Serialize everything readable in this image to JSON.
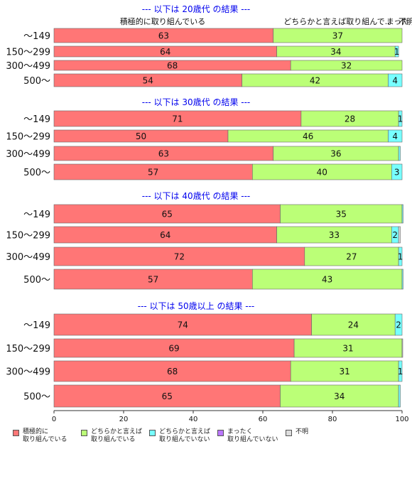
{
  "chart_data": {
    "type": "bar",
    "orientation": "horizontal",
    "stacked": true,
    "xlim": [
      0,
      100
    ],
    "xticks": [
      "0",
      "20",
      "40",
      "60",
      "80",
      "100"
    ],
    "header_labels": [
      "積極的に取り組んでいる",
      "どちらかと言えば取り組んで..",
      "まった",
      "不明"
    ],
    "series": [
      {
        "name": "積極的に\n取り組んでいる",
        "color": "#ff7676"
      },
      {
        "name": "どちらかと言えば\n取り組んでいる",
        "color": "#bbff77"
      },
      {
        "name": "どちらかと言えば\n取り組んでいない",
        "color": "#77ffff"
      },
      {
        "name": "まったく\n取り組んでいない",
        "color": "#bb77ff"
      },
      {
        "name": "不明",
        "color": "#dddddd"
      }
    ],
    "groups": [
      {
        "title": "--- 以下は 20歳代 の結果 ---",
        "categories": [
          "〜149",
          "150〜299",
          "300〜499",
          "500〜"
        ],
        "values": [
          [
            63,
            37,
            0,
            0,
            0
          ],
          [
            64,
            34,
            1,
            0,
            0
          ],
          [
            68,
            32,
            0,
            0,
            0
          ],
          [
            54,
            42,
            4,
            0,
            0
          ]
        ],
        "labels": [
          [
            "63",
            "37",
            "",
            "",
            ""
          ],
          [
            "64",
            "34",
            "1",
            "",
            ""
          ],
          [
            "68",
            "32",
            "",
            "",
            ""
          ],
          [
            "54",
            "42",
            "4",
            "",
            ""
          ]
        ]
      },
      {
        "title": "--- 以下は 30歳代 の結果 ---",
        "categories": [
          "〜149",
          "150〜299",
          "300〜499",
          "500〜"
        ],
        "values": [
          [
            71,
            28,
            1,
            0,
            0
          ],
          [
            50,
            46,
            4,
            0,
            0
          ],
          [
            63,
            36,
            0.5,
            0,
            0
          ],
          [
            57,
            40,
            3,
            0,
            0
          ]
        ],
        "labels": [
          [
            "71",
            "28",
            "1",
            "",
            ""
          ],
          [
            "50",
            "46",
            "4",
            "",
            ""
          ],
          [
            "63",
            "36",
            "",
            "",
            ""
          ],
          [
            "57",
            "40",
            "3",
            "",
            ""
          ]
        ]
      },
      {
        "title": "--- 以下は 40歳代 の結果 ---",
        "categories": [
          "〜149",
          "150〜299",
          "300〜499",
          "500〜"
        ],
        "values": [
          [
            65,
            35,
            0.3,
            0,
            0
          ],
          [
            64,
            33,
            2,
            0,
            0.5
          ],
          [
            72,
            27,
            1,
            0,
            0
          ],
          [
            57,
            43,
            0.3,
            0,
            0
          ]
        ],
        "labels": [
          [
            "65",
            "35",
            "",
            "",
            ""
          ],
          [
            "64",
            "33",
            "2",
            "",
            ""
          ],
          [
            "72",
            "27",
            "1",
            "",
            ""
          ],
          [
            "57",
            "43",
            "",
            "",
            ""
          ]
        ]
      },
      {
        "title": "--- 以下は 50歳以上 の結果 ---",
        "categories": [
          "〜149",
          "150〜299",
          "300〜499",
          "500〜"
        ],
        "values": [
          [
            74,
            24,
            2,
            0,
            0
          ],
          [
            69,
            31,
            0,
            0,
            0.2
          ],
          [
            68,
            31,
            1,
            0,
            0
          ],
          [
            65,
            34,
            0.5,
            0,
            0
          ]
        ],
        "labels": [
          [
            "74",
            "24",
            "2",
            "",
            ""
          ],
          [
            "69",
            "31",
            "",
            "",
            ""
          ],
          [
            "68",
            "31",
            "1",
            "",
            ""
          ],
          [
            "65",
            "34",
            "",
            "",
            ""
          ]
        ]
      }
    ]
  }
}
